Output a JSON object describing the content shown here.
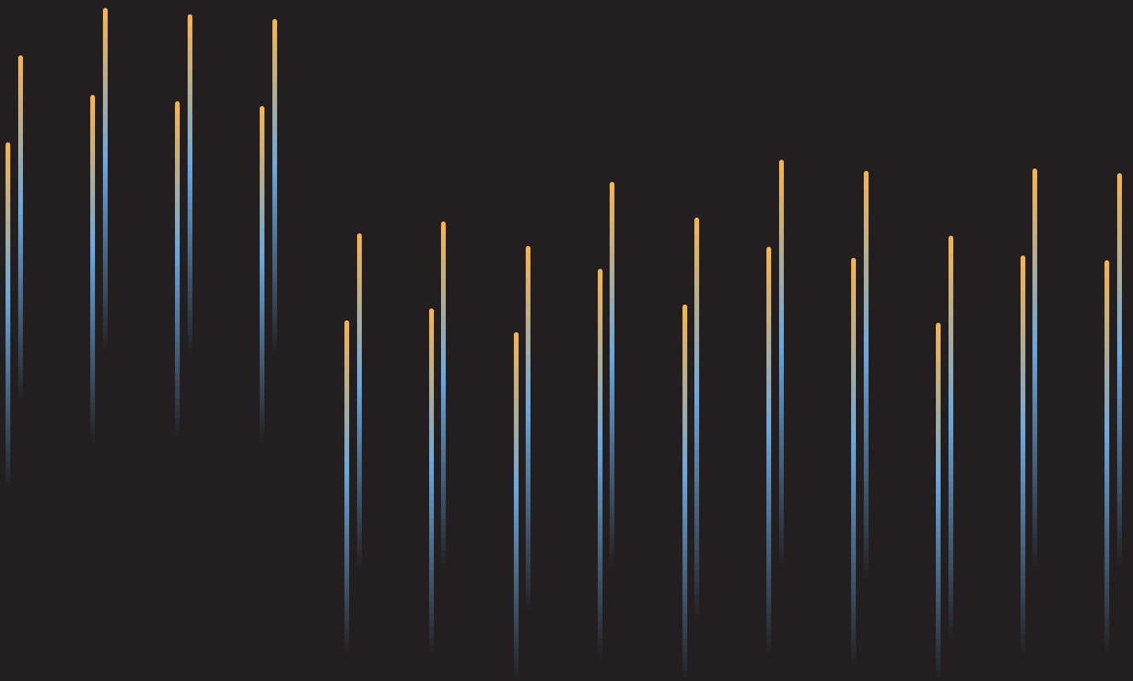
{
  "colors": {
    "background": "#231f20",
    "gradient_top": "#f7b44c",
    "gradient_middle": "#6aa7dd",
    "gradient_bottom_fade": "#231f20"
  },
  "decoration": {
    "description_shapes": "vertical-gradient-lines",
    "pair_count": 14
  }
}
